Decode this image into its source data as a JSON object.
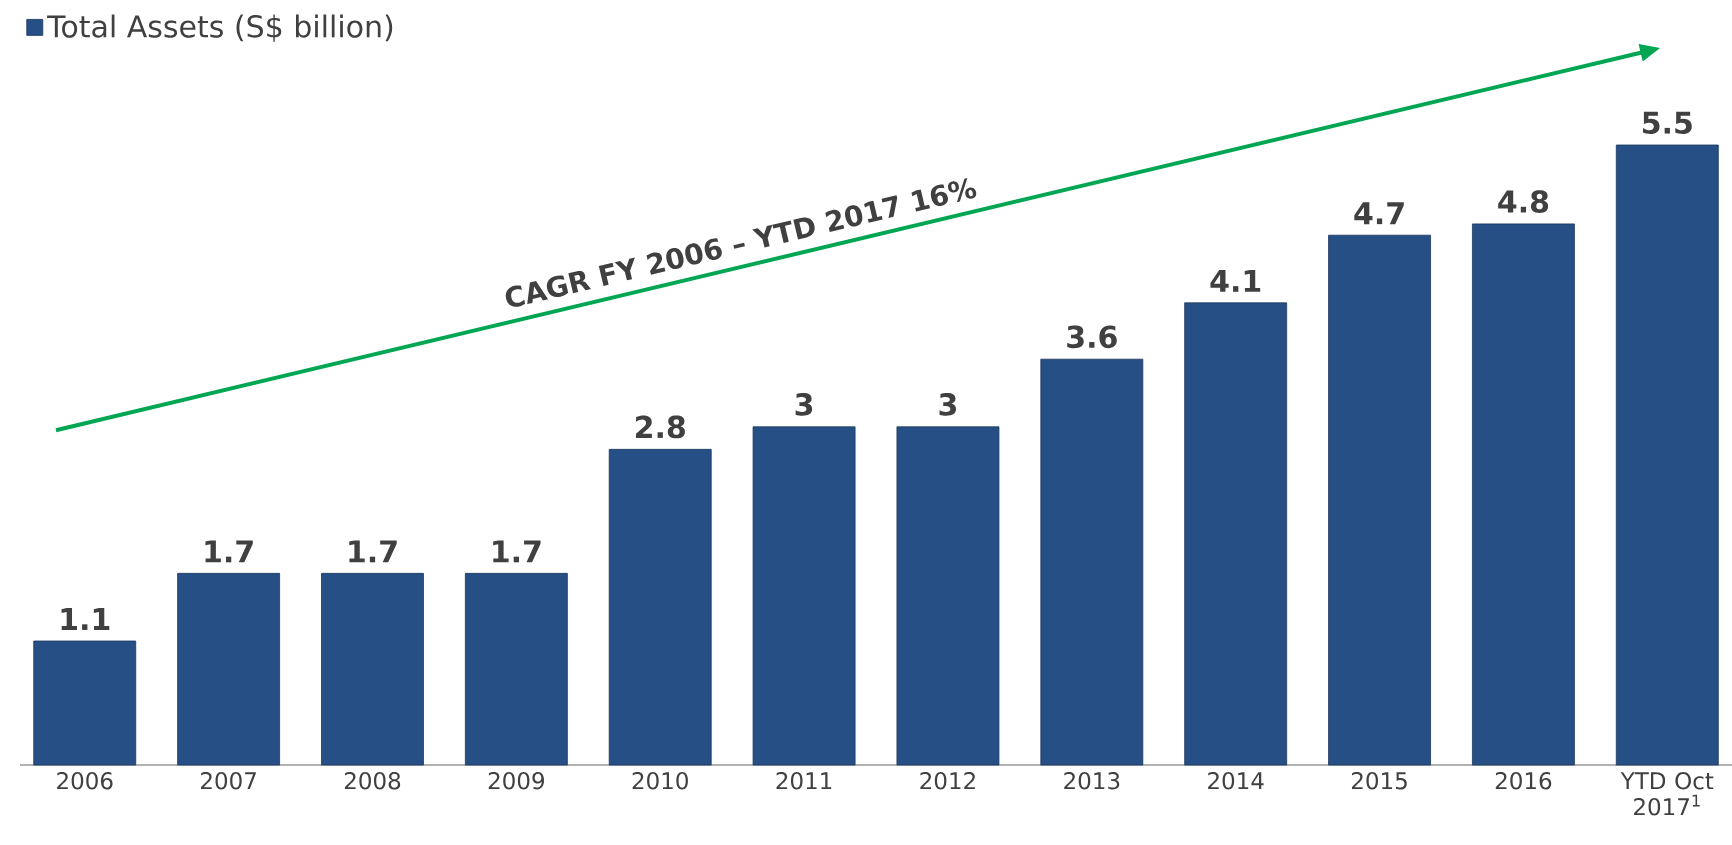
{
  "chart_data": {
    "type": "bar",
    "categories": [
      "2006",
      "2007",
      "2008",
      "2009",
      "2010",
      "2011",
      "2012",
      "2013",
      "2014",
      "2015",
      "2016",
      "YTD Oct 2017$^{1}$"
    ],
    "series": [
      {
        "name": "Total Assets (S$ billion)",
        "color": "#264f86",
        "values": [
          1.1,
          1.7,
          1.7,
          1.7,
          2.8,
          3,
          3,
          3.6,
          4.1,
          4.7,
          4.8,
          5.5
        ]
      }
    ],
    "annotations": [
      "CAGR FY 2006 – YTD 2017 16%"
    ],
    "data_labels": true,
    "legend": "top left"
  }
}
